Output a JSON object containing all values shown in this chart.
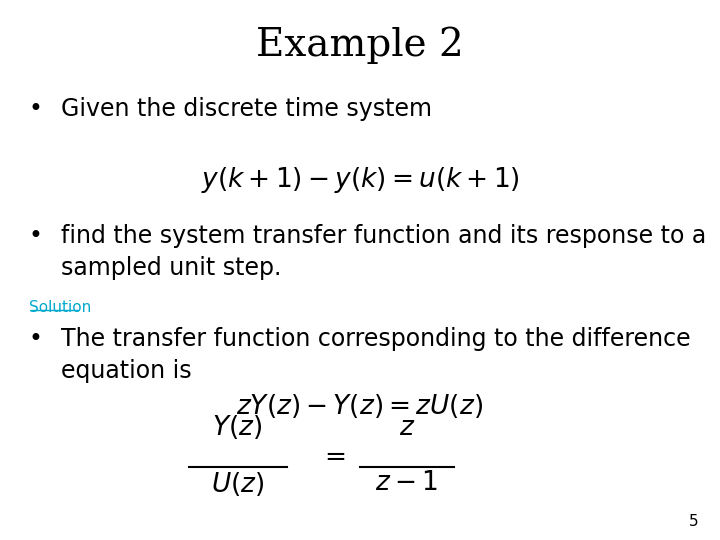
{
  "title": "Example 2",
  "title_fontsize": 28,
  "title_fontfamily": "DejaVu Serif",
  "background_color": "#ffffff",
  "bullet1": "Given the discrete time system",
  "eq1": "$y(k+1) - y(k) = u(k+1)$",
  "bullet2_line1": "find the system transfer function and its response to a",
  "bullet2_line2": "sampled unit step.",
  "solution_label": "Solution",
  "solution_color": "#00AACC",
  "bullet3_line1": "The transfer function corresponding to the difference",
  "bullet3_line2": "equation is",
  "eq2": "$zY(z) - Y(z) = zU(z)$",
  "page_number": "5",
  "text_fontsize": 17,
  "eq_fontsize": 19,
  "small_fontsize": 11
}
